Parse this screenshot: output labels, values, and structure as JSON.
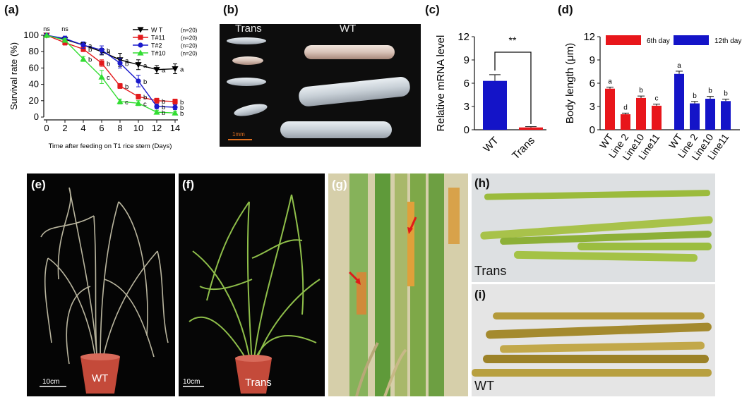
{
  "panels": {
    "a": "(a)",
    "b": "(b)",
    "c": "(c)",
    "d": "(d)",
    "e": "(e)",
    "f": "(f)",
    "g": "(g)",
    "h": "(h)",
    "i": "(i)"
  },
  "photo_texts": {
    "b_trans": "Trans",
    "b_wt": "WT",
    "b_scale": "1mm",
    "e_scale": "10cm",
    "e_pot": "WT",
    "f_scale": "10cm",
    "f_pot": "Trans",
    "h_label": "Trans",
    "i_label": "WT"
  },
  "colors": {
    "wt": "#000000",
    "t11": "#e31a1c",
    "t2": "#1a1acc",
    "t10": "#33dd33",
    "bar_blue": "#1414c8",
    "bar_red": "#e8161b"
  },
  "chart_data": [
    {
      "id": "a",
      "type": "line",
      "xlabel": "Time after feeding on T1 rice stem (Days)",
      "ylabel": "Survival rate (%)",
      "x": [
        0,
        2,
        4,
        6,
        8,
        10,
        12,
        14
      ],
      "xlim": [
        0,
        14
      ],
      "ylim": [
        0,
        100
      ],
      "yticks": [
        0,
        20,
        40,
        60,
        80,
        100
      ],
      "series": [
        {
          "name": "W T",
          "n": "(n=20)",
          "color": "#000000",
          "marker": "tri-down",
          "values": [
            100,
            95,
            88,
            80,
            70,
            64,
            58,
            59
          ],
          "err": [
            0,
            3,
            3,
            4,
            8,
            6,
            5,
            6
          ],
          "letters": [
            "",
            "",
            "a",
            "a",
            "a",
            "a",
            "a",
            "a"
          ]
        },
        {
          "name": "T#11",
          "n": "(n=20)",
          "color": "#e31a1c",
          "marker": "square",
          "values": [
            100,
            91,
            83,
            66,
            38,
            25,
            20,
            19
          ],
          "err": [
            0,
            3,
            3,
            4,
            3,
            3,
            3,
            3
          ],
          "letters": [
            "",
            "",
            "b",
            "b",
            "b",
            "b",
            "b",
            "b"
          ]
        },
        {
          "name": "T#2",
          "n": "(n=20)",
          "color": "#1a1acc",
          "marker": "circle",
          "values": [
            100,
            96,
            88,
            82,
            66,
            44,
            13,
            12
          ],
          "err": [
            0,
            3,
            4,
            5,
            6,
            7,
            3,
            3
          ],
          "letters": [
            "",
            "",
            "a",
            "b",
            "b",
            "b",
            "b",
            "b"
          ]
        },
        {
          "name": "T#10",
          "n": "(n=20)",
          "color": "#33dd33",
          "marker": "tri-up",
          "values": [
            100,
            94,
            71,
            49,
            19,
            17,
            6,
            5
          ],
          "err": [
            0,
            2,
            3,
            8,
            3,
            3,
            2,
            2
          ],
          "letters": [
            "",
            "",
            "b",
            "c",
            "c",
            "c",
            "b",
            "b"
          ]
        }
      ],
      "annotations": [
        {
          "x": 0,
          "text": "ns"
        },
        {
          "x": 2,
          "text": "ns"
        }
      ],
      "legend": "top-right"
    },
    {
      "id": "c",
      "type": "bar",
      "ylabel": "Relative mRNA level",
      "categories": [
        "WT",
        "Trans"
      ],
      "values": [
        6.3,
        0.3
      ],
      "err": [
        0.8,
        0.1
      ],
      "colors": [
        "#1414c8",
        "#e8161b"
      ],
      "ylim": [
        0,
        12
      ],
      "yticks": [
        0,
        3,
        6,
        9,
        12
      ],
      "significance": "**"
    },
    {
      "id": "d",
      "type": "bar",
      "ylabel": "Body length (μm)",
      "groups": [
        {
          "name": "6th day",
          "color": "#e8161b",
          "categories": [
            "WT",
            "Line 2",
            "Line10",
            "Line11"
          ],
          "values": [
            5.3,
            2.0,
            4.1,
            3.1
          ],
          "err": [
            0.2,
            0.15,
            0.25,
            0.2
          ],
          "letters": [
            "a",
            "d",
            "b",
            "c"
          ]
        },
        {
          "name": "12th day",
          "color": "#1414c8",
          "categories": [
            "WT",
            "Line 2",
            "Line10",
            "Line11"
          ],
          "values": [
            7.2,
            3.4,
            4.0,
            3.7
          ],
          "err": [
            0.35,
            0.25,
            0.3,
            0.25
          ],
          "letters": [
            "a",
            "b",
            "b",
            "b"
          ]
        }
      ],
      "ylim": [
        0,
        12
      ],
      "yticks": [
        0,
        3,
        6,
        9,
        12
      ],
      "legend": "top"
    }
  ]
}
